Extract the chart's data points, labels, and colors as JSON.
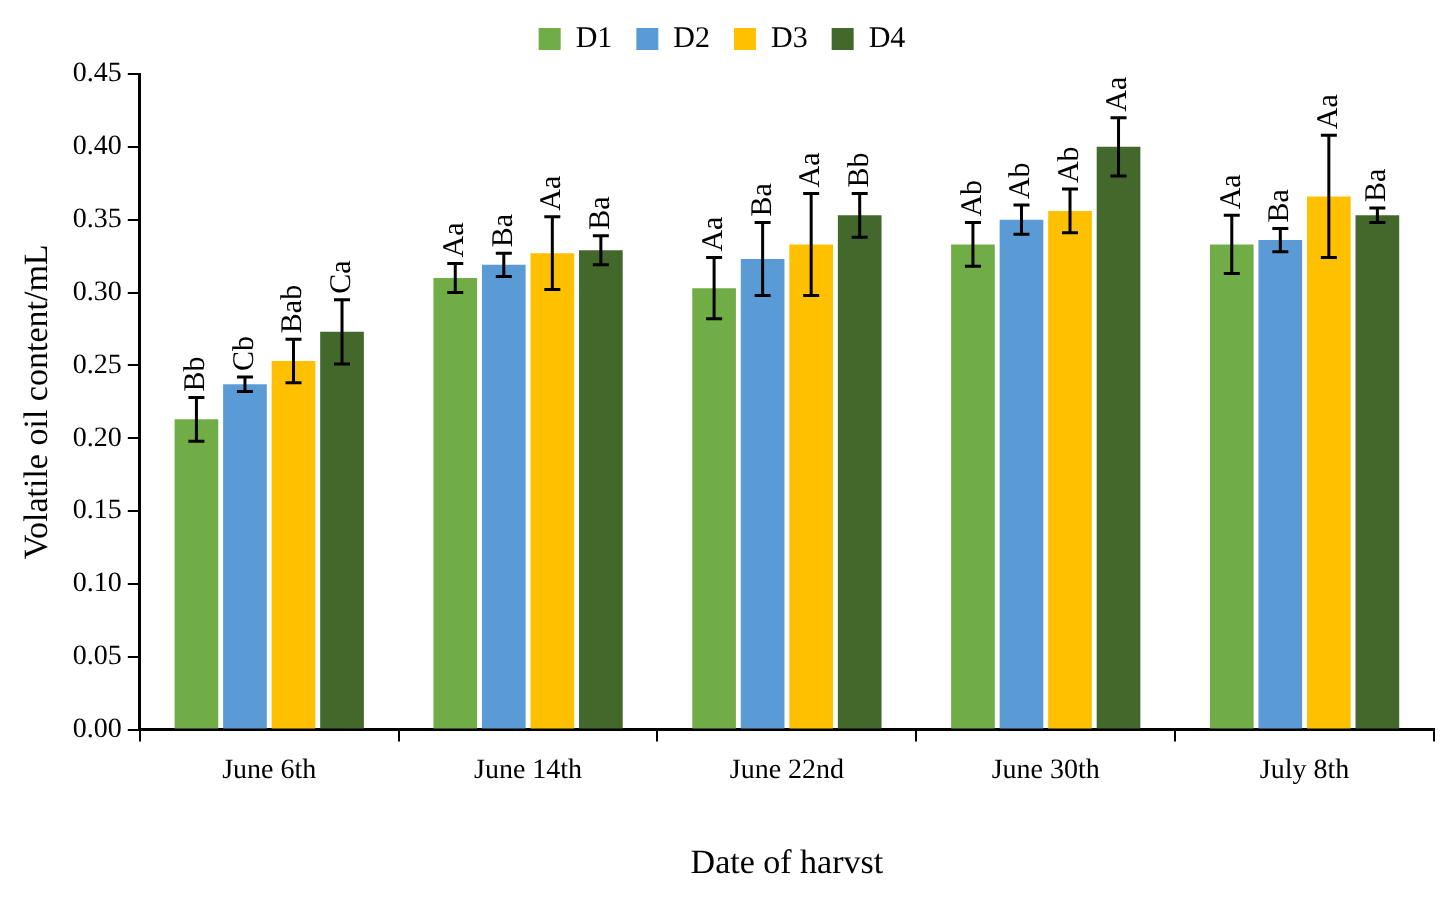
{
  "chart_data": {
    "type": "bar",
    "xlabel": "Date of harvst",
    "ylabel": "Volatile oil content/mL",
    "categories": [
      "June 6th",
      "June 14th",
      "June 22nd",
      "June 30th",
      "July 8th"
    ],
    "series": [
      {
        "name": "D1",
        "color": "#70ad47",
        "values": [
          0.213,
          0.31,
          0.303,
          0.333,
          0.333
        ],
        "errors": [
          0.015,
          0.01,
          0.021,
          0.015,
          0.02
        ],
        "value_labels": [
          "Bb",
          "Aa",
          "Aa",
          "Ab",
          "Aa"
        ]
      },
      {
        "name": "D2",
        "color": "#5b9bd5",
        "values": [
          0.237,
          0.319,
          0.323,
          0.35,
          0.336
        ],
        "errors": [
          0.005,
          0.008,
          0.025,
          0.01,
          0.008
        ],
        "value_labels": [
          "Cb",
          "Ba",
          "Ba",
          "Ab",
          "Ba"
        ]
      },
      {
        "name": "D3",
        "color": "#ffc000",
        "values": [
          0.253,
          0.327,
          0.333,
          0.356,
          0.366
        ],
        "errors": [
          0.015,
          0.025,
          0.035,
          0.015,
          0.042
        ],
        "value_labels": [
          "Bab",
          "Aa",
          "Aa",
          "Ab",
          "Aa"
        ]
      },
      {
        "name": "D4",
        "color": "#43682b",
        "values": [
          0.273,
          0.329,
          0.353,
          0.4,
          0.353
        ],
        "errors": [
          0.022,
          0.01,
          0.015,
          0.02,
          0.005
        ],
        "value_labels": [
          "Ca",
          "Ba",
          "Bb",
          "Aa",
          "Ba"
        ]
      }
    ],
    "ylim": [
      0,
      0.45
    ],
    "yticks": [
      {
        "value": 0,
        "label": "0.00"
      },
      {
        "value": 0.05,
        "label": "0.05"
      },
      {
        "value": 0.1,
        "label": "0.10"
      },
      {
        "value": 0.15,
        "label": "0.15"
      },
      {
        "value": 0.2,
        "label": "0.20"
      },
      {
        "value": 0.25,
        "label": "0.25"
      },
      {
        "value": 0.3,
        "label": "0.30"
      },
      {
        "value": 0.35,
        "label": "0.35"
      },
      {
        "value": 0.4,
        "label": "0.40"
      },
      {
        "value": 0.45,
        "label": "0.45"
      }
    ],
    "grid": false,
    "legend": "top"
  }
}
